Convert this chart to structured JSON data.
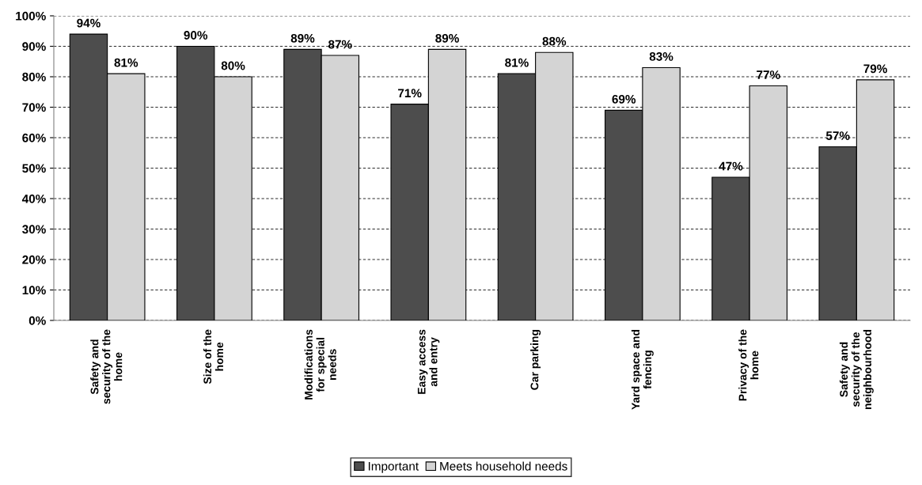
{
  "chart_data": {
    "type": "bar",
    "categories": [
      "Safety and\nsecurity of the\nhome",
      "Size of the\nhome",
      "Modifications\nfor special\nneeds",
      "Easy access\nand entry",
      "Car parking",
      "Yard space and\nfencing",
      "Privacy of the\nhome",
      "Safety and\nsecurity of the\nneighbourhood"
    ],
    "series": [
      {
        "name": "Important",
        "color": "#4d4d4d",
        "values": [
          94,
          90,
          89,
          71,
          81,
          69,
          47,
          57
        ],
        "value_labels": [
          "94%",
          "90%",
          "89%",
          "71%",
          "81%",
          "69%",
          "47%",
          "57%"
        ]
      },
      {
        "name": "Meets household needs",
        "color": "#d4d4d4",
        "values": [
          81,
          80,
          87,
          89,
          88,
          83,
          77,
          79
        ],
        "value_labels": [
          "81%",
          "80%",
          "87%",
          "89%",
          "88%",
          "83%",
          "77%",
          "79%"
        ]
      }
    ],
    "ylim": [
      0,
      100
    ],
    "yticks": [
      {
        "value": 0,
        "label": "0%"
      },
      {
        "value": 10,
        "label": "10%"
      },
      {
        "value": 20,
        "label": "20%"
      },
      {
        "value": 30,
        "label": "30%"
      },
      {
        "value": 40,
        "label": "40%"
      },
      {
        "value": 50,
        "label": "50%"
      },
      {
        "value": 60,
        "label": "60%"
      },
      {
        "value": 70,
        "label": "70%"
      },
      {
        "value": 80,
        "label": "80%"
      },
      {
        "value": 90,
        "label": "90%"
      },
      {
        "value": 100,
        "label": "100%"
      }
    ],
    "grid": "y",
    "legend": "bottom"
  }
}
